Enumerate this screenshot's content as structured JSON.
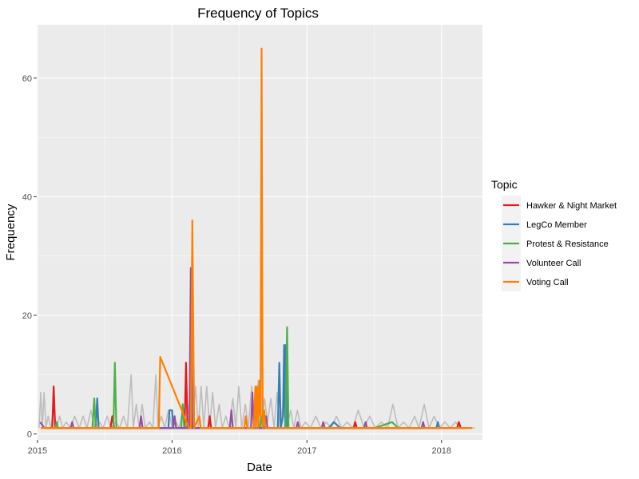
{
  "chart_data": {
    "type": "line",
    "title": "Frequency of Topics",
    "xlabel": "Date",
    "ylabel": "Frequency",
    "x_axis": {
      "kind": "date",
      "range": [
        "2014-12-30",
        "2018-04-22"
      ],
      "ticks": [
        {
          "date": "2015-01-01",
          "label": "2015"
        },
        {
          "date": "2016-01-01",
          "label": "2016"
        },
        {
          "date": "2017-01-01",
          "label": "2017"
        },
        {
          "date": "2018-01-01",
          "label": "2018"
        }
      ]
    },
    "y_axis": {
      "range": [
        -1,
        69
      ],
      "ticks": [
        0,
        20,
        40,
        60
      ]
    },
    "grid": true,
    "legend": {
      "title": "Topic",
      "position": "right",
      "entries": [
        "Hawker & Night Market",
        "LegCo Member",
        "Protest & Resistance",
        "Volunteer Call",
        "Voting Call"
      ]
    },
    "background_series": {
      "description": "other topics (unlabeled)",
      "color": "#bdbdbd",
      "points": [
        [
          "2015-01-05",
          1
        ],
        [
          "2015-01-10",
          7
        ],
        [
          "2015-01-14",
          1
        ],
        [
          "2015-01-19",
          7
        ],
        [
          "2015-01-24",
          1
        ],
        [
          "2015-01-30",
          3
        ],
        [
          "2015-02-06",
          1
        ],
        [
          "2015-02-14",
          4
        ],
        [
          "2015-02-22",
          1
        ],
        [
          "2015-03-02",
          3
        ],
        [
          "2015-03-10",
          1
        ],
        [
          "2015-03-20",
          2
        ],
        [
          "2015-04-01",
          1
        ],
        [
          "2015-04-12",
          3
        ],
        [
          "2015-04-24",
          1
        ],
        [
          "2015-05-05",
          3
        ],
        [
          "2015-05-15",
          1
        ],
        [
          "2015-05-26",
          4
        ],
        [
          "2015-06-05",
          1
        ],
        [
          "2015-06-18",
          2
        ],
        [
          "2015-06-28",
          1
        ],
        [
          "2015-07-09",
          3
        ],
        [
          "2015-07-19",
          1
        ],
        [
          "2015-08-01",
          2
        ],
        [
          "2015-08-12",
          1
        ],
        [
          "2015-08-22",
          3
        ],
        [
          "2015-09-02",
          1
        ],
        [
          "2015-09-12",
          10
        ],
        [
          "2015-09-18",
          1
        ],
        [
          "2015-09-26",
          5
        ],
        [
          "2015-10-04",
          1
        ],
        [
          "2015-10-12",
          5
        ],
        [
          "2015-10-20",
          1
        ],
        [
          "2015-11-01",
          2
        ],
        [
          "2015-11-10",
          1
        ],
        [
          "2015-11-18",
          10
        ],
        [
          "2015-11-24",
          1
        ],
        [
          "2015-12-03",
          3
        ],
        [
          "2015-12-12",
          1
        ],
        [
          "2015-12-22",
          4
        ],
        [
          "2016-01-02",
          1
        ],
        [
          "2016-01-12",
          2
        ],
        [
          "2016-01-20",
          1
        ],
        [
          "2016-01-30",
          4
        ],
        [
          "2016-02-08",
          1
        ],
        [
          "2016-02-18",
          6
        ],
        [
          "2016-02-26",
          1
        ],
        [
          "2016-03-05",
          8
        ],
        [
          "2016-03-12",
          1
        ],
        [
          "2016-03-20",
          8
        ],
        [
          "2016-03-27",
          1
        ],
        [
          "2016-04-04",
          8
        ],
        [
          "2016-04-12",
          1
        ],
        [
          "2016-04-20",
          7
        ],
        [
          "2016-04-28",
          1
        ],
        [
          "2016-05-08",
          5
        ],
        [
          "2016-05-16",
          1
        ],
        [
          "2016-05-26",
          3
        ],
        [
          "2016-06-04",
          1
        ],
        [
          "2016-06-14",
          6
        ],
        [
          "2016-06-22",
          1
        ],
        [
          "2016-06-30",
          8
        ],
        [
          "2016-07-08",
          1
        ],
        [
          "2016-07-18",
          5
        ],
        [
          "2016-07-26",
          1
        ],
        [
          "2016-08-04",
          8
        ],
        [
          "2016-08-12",
          1
        ],
        [
          "2016-08-22",
          9
        ],
        [
          "2016-08-30",
          1
        ],
        [
          "2016-09-08",
          6
        ],
        [
          "2016-09-16",
          2
        ],
        [
          "2016-09-25",
          6
        ],
        [
          "2016-10-04",
          1
        ],
        [
          "2016-10-12",
          7
        ],
        [
          "2016-10-20",
          1
        ],
        [
          "2016-10-30",
          6
        ],
        [
          "2016-11-08",
          1
        ],
        [
          "2016-11-18",
          4
        ],
        [
          "2016-11-26",
          1
        ],
        [
          "2016-12-06",
          4
        ],
        [
          "2016-12-16",
          1
        ],
        [
          "2016-12-28",
          2
        ],
        [
          "2017-01-10",
          1
        ],
        [
          "2017-01-25",
          3
        ],
        [
          "2017-02-08",
          1
        ],
        [
          "2017-02-22",
          2
        ],
        [
          "2017-03-08",
          1
        ],
        [
          "2017-03-22",
          3
        ],
        [
          "2017-04-05",
          1
        ],
        [
          "2017-04-20",
          2
        ],
        [
          "2017-05-05",
          1
        ],
        [
          "2017-05-20",
          4
        ],
        [
          "2017-06-05",
          1
        ],
        [
          "2017-06-20",
          3
        ],
        [
          "2017-07-05",
          1
        ],
        [
          "2017-07-22",
          2
        ],
        [
          "2017-08-08",
          1
        ],
        [
          "2017-08-22",
          5
        ],
        [
          "2017-09-05",
          1
        ],
        [
          "2017-09-20",
          2
        ],
        [
          "2017-10-05",
          1
        ],
        [
          "2017-10-20",
          3
        ],
        [
          "2017-11-01",
          1
        ],
        [
          "2017-11-15",
          5
        ],
        [
          "2017-11-28",
          1
        ],
        [
          "2017-12-12",
          3
        ],
        [
          "2017-12-26",
          1
        ],
        [
          "2018-01-10",
          2
        ],
        [
          "2018-01-25",
          1
        ],
        [
          "2018-02-08",
          2
        ],
        [
          "2018-02-22",
          1
        ],
        [
          "2018-03-08",
          1
        ],
        [
          "2018-03-22",
          1
        ],
        [
          "2018-04-01",
          1
        ]
      ]
    },
    "series": [
      {
        "name": "Hawker & Night Market",
        "color": "#e41a1c",
        "points": [
          [
            "2015-02-10",
            1
          ],
          [
            "2015-02-14",
            8
          ],
          [
            "2015-02-18",
            1
          ],
          [
            "2015-07-18",
            1
          ],
          [
            "2015-07-23",
            3
          ],
          [
            "2015-07-28",
            1
          ],
          [
            "2016-02-04",
            1
          ],
          [
            "2016-02-08",
            12
          ],
          [
            "2016-02-12",
            1
          ],
          [
            "2016-04-08",
            1
          ],
          [
            "2016-04-12",
            3
          ],
          [
            "2016-04-16",
            1
          ],
          [
            "2017-05-08",
            1
          ],
          [
            "2017-05-12",
            2
          ],
          [
            "2017-05-16",
            1
          ],
          [
            "2018-02-12",
            1
          ],
          [
            "2018-02-17",
            2
          ],
          [
            "2018-02-22",
            1
          ],
          [
            "2018-03-15",
            1
          ]
        ]
      },
      {
        "name": "LegCo Member",
        "color": "#377eb8",
        "points": [
          [
            "2015-06-08",
            1
          ],
          [
            "2015-06-12",
            6
          ],
          [
            "2015-06-16",
            1
          ],
          [
            "2015-12-22",
            1
          ],
          [
            "2015-12-25",
            4
          ],
          [
            "2016-01-01",
            4
          ],
          [
            "2016-01-04",
            1
          ],
          [
            "2016-10-14",
            1
          ],
          [
            "2016-10-18",
            12
          ],
          [
            "2016-10-22",
            1
          ],
          [
            "2016-10-28",
            3
          ],
          [
            "2016-10-31",
            15
          ],
          [
            "2016-11-03",
            1
          ],
          [
            "2016-11-05",
            15
          ],
          [
            "2016-11-09",
            1
          ],
          [
            "2017-03-01",
            1
          ],
          [
            "2017-03-15",
            2
          ],
          [
            "2017-04-01",
            1
          ],
          [
            "2017-12-18",
            1
          ],
          [
            "2017-12-22",
            2
          ],
          [
            "2017-12-26",
            1
          ]
        ]
      },
      {
        "name": "Protest & Resistance",
        "color": "#4daf4a",
        "points": [
          [
            "2015-02-18",
            1
          ],
          [
            "2015-02-22",
            2
          ],
          [
            "2015-02-26",
            1
          ],
          [
            "2015-05-30",
            1
          ],
          [
            "2015-06-04",
            6
          ],
          [
            "2015-06-08",
            1
          ],
          [
            "2015-07-26",
            1
          ],
          [
            "2015-07-30",
            12
          ],
          [
            "2015-08-03",
            1
          ],
          [
            "2016-01-26",
            1
          ],
          [
            "2016-01-30",
            5
          ],
          [
            "2016-02-03",
            1
          ],
          [
            "2016-08-26",
            1
          ],
          [
            "2016-08-30",
            3
          ],
          [
            "2016-09-04",
            1
          ],
          [
            "2016-11-04",
            1
          ],
          [
            "2016-11-08",
            18
          ],
          [
            "2016-11-12",
            1
          ],
          [
            "2017-07-05",
            1
          ],
          [
            "2017-08-20",
            2
          ],
          [
            "2017-09-05",
            1
          ]
        ]
      },
      {
        "name": "Volunteer Call",
        "color": "#984ea3",
        "points": [
          [
            "2015-01-08",
            2
          ],
          [
            "2015-01-20",
            1
          ],
          [
            "2015-04-01",
            1
          ],
          [
            "2015-04-05",
            2
          ],
          [
            "2015-04-09",
            1
          ],
          [
            "2015-10-05",
            1
          ],
          [
            "2015-10-09",
            3
          ],
          [
            "2015-10-13",
            1
          ],
          [
            "2016-01-04",
            1
          ],
          [
            "2016-01-08",
            3
          ],
          [
            "2016-01-12",
            1
          ],
          [
            "2016-02-17",
            1
          ],
          [
            "2016-02-21",
            28
          ],
          [
            "2016-02-25",
            1
          ],
          [
            "2016-06-06",
            1
          ],
          [
            "2016-06-10",
            4
          ],
          [
            "2016-06-14",
            1
          ],
          [
            "2016-08-02",
            1
          ],
          [
            "2016-08-06",
            7
          ],
          [
            "2016-08-10",
            1
          ],
          [
            "2016-09-08",
            1
          ],
          [
            "2016-09-12",
            3
          ],
          [
            "2016-09-16",
            1
          ],
          [
            "2016-12-03",
            1
          ],
          [
            "2016-12-07",
            2
          ],
          [
            "2016-12-11",
            1
          ],
          [
            "2017-02-10",
            1
          ],
          [
            "2017-02-14",
            2
          ],
          [
            "2017-02-18",
            1
          ],
          [
            "2017-06-05",
            1
          ],
          [
            "2017-06-09",
            2
          ],
          [
            "2017-06-13",
            1
          ],
          [
            "2017-11-08",
            1
          ],
          [
            "2017-11-12",
            2
          ],
          [
            "2017-11-16",
            1
          ]
        ]
      },
      {
        "name": "Voting Call",
        "color": "#ff7f00",
        "points": [
          [
            "2015-01-10",
            1
          ],
          [
            "2015-11-26",
            1
          ],
          [
            "2015-11-30",
            13
          ],
          [
            "2016-02-16",
            1
          ],
          [
            "2016-02-21",
            1
          ],
          [
            "2016-02-25",
            36
          ],
          [
            "2016-03-01",
            1
          ],
          [
            "2016-03-15",
            3
          ],
          [
            "2016-03-19",
            1
          ],
          [
            "2016-07-15",
            1
          ],
          [
            "2016-07-19",
            3
          ],
          [
            "2016-07-23",
            1
          ],
          [
            "2016-08-10",
            1
          ],
          [
            "2016-08-14",
            8
          ],
          [
            "2016-08-16",
            1
          ],
          [
            "2016-08-19",
            8
          ],
          [
            "2016-08-22",
            1
          ],
          [
            "2016-08-25",
            9
          ],
          [
            "2016-08-28",
            3
          ],
          [
            "2016-08-31",
            65
          ],
          [
            "2016-09-03",
            1
          ],
          [
            "2016-09-07",
            4
          ],
          [
            "2016-09-10",
            1
          ],
          [
            "2018-03-25",
            1
          ]
        ]
      }
    ]
  }
}
